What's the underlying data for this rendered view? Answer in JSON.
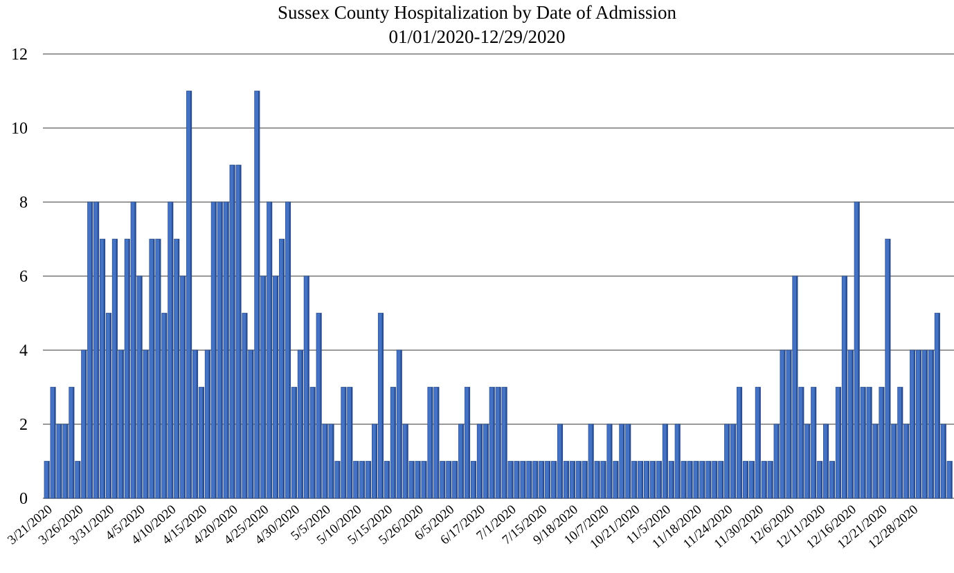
{
  "chart_data": {
    "type": "bar",
    "title": "Sussex County Hospitalization by Date of Admission",
    "subtitle": "01/01/2020-12/29/2020",
    "xlabel": "",
    "ylabel": "",
    "ylim": [
      0,
      12
    ],
    "yticks": [
      0,
      2,
      4,
      6,
      8,
      10,
      12
    ],
    "grid": true,
    "legend": "none",
    "bar_color": "#4472C4",
    "xtick_labels": [
      "3/21/2020",
      "3/26/2020",
      "3/31/2020",
      "4/5/2020",
      "4/10/2020",
      "4/15/2020",
      "4/20/2020",
      "4/25/2020",
      "4/30/2020",
      "5/5/2020",
      "5/10/2020",
      "5/15/2020",
      "5/26/2020",
      "6/5/2020",
      "6/17/2020",
      "7/1/2020",
      "7/15/2020",
      "9/18/2020",
      "10/7/2020",
      "10/21/2020",
      "11/5/2020",
      "11/18/2020",
      "11/24/2020",
      "11/30/2020",
      "12/6/2020",
      "12/11/2020",
      "12/16/2020",
      "12/21/2020",
      "12/28/2020"
    ],
    "xtick_positions": [
      0,
      5,
      10,
      15,
      20,
      25,
      30,
      35,
      40,
      45,
      50,
      55,
      60,
      65,
      70,
      75,
      80,
      85,
      90,
      95,
      100,
      105,
      110,
      115,
      120,
      125,
      130,
      135,
      140
    ],
    "values": [
      1,
      3,
      2,
      2,
      3,
      1,
      4,
      8,
      8,
      7,
      5,
      7,
      4,
      7,
      8,
      6,
      4,
      7,
      7,
      5,
      8,
      7,
      6,
      11,
      4,
      3,
      4,
      8,
      8,
      8,
      9,
      9,
      5,
      4,
      11,
      6,
      8,
      6,
      7,
      8,
      3,
      4,
      6,
      3,
      5,
      2,
      2,
      1,
      3,
      3,
      1,
      1,
      1,
      2,
      5,
      1,
      3,
      4,
      2,
      1,
      1,
      1,
      3,
      3,
      1,
      1,
      1,
      2,
      3,
      1,
      2,
      2,
      3,
      3,
      3,
      1,
      1,
      1,
      1,
      1,
      1,
      1,
      1,
      2,
      1,
      1,
      1,
      1,
      2,
      1,
      1,
      2,
      1,
      2,
      2,
      1,
      1,
      1,
      1,
      1,
      2,
      1,
      2,
      1,
      1,
      1,
      1,
      1,
      1,
      1,
      2,
      2,
      3,
      1,
      1,
      3,
      1,
      1,
      2,
      4,
      4,
      6,
      3,
      2,
      3,
      1,
      2,
      1,
      3,
      6,
      4,
      8,
      3,
      3,
      2,
      3,
      7,
      2,
      3,
      2,
      4,
      4,
      4,
      4,
      5,
      2,
      1
    ]
  }
}
